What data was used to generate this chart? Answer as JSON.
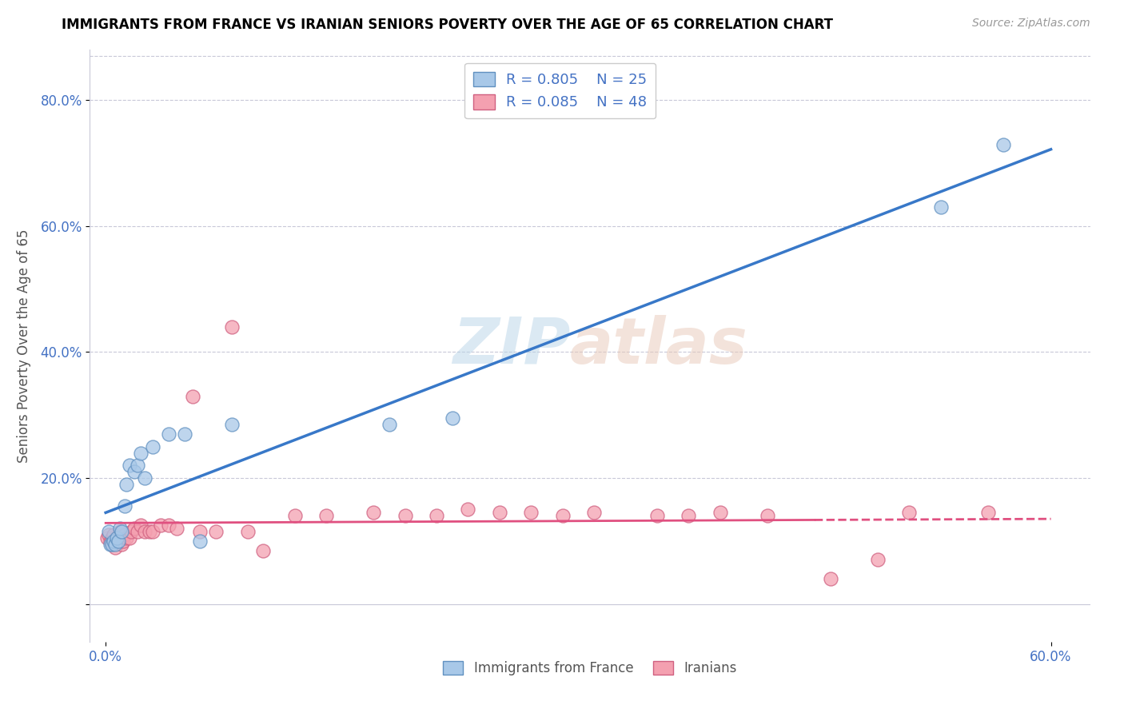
{
  "title": "IMMIGRANTS FROM FRANCE VS IRANIAN SENIORS POVERTY OVER THE AGE OF 65 CORRELATION CHART",
  "source": "Source: ZipAtlas.com",
  "ylabel": "Seniors Poverty Over the Age of 65",
  "xlim": [
    -0.01,
    0.625
  ],
  "ylim": [
    -0.06,
    0.88
  ],
  "yticks": [
    0.0,
    0.2,
    0.4,
    0.6,
    0.8
  ],
  "ytick_labels": [
    "",
    "20.0%",
    "40.0%",
    "60.0%",
    "80.0%"
  ],
  "xtick_vals": [
    0.0,
    0.6
  ],
  "xtick_labels": [
    "0.0%",
    "60.0%"
  ],
  "france_color": "#a8c8e8",
  "iran_color": "#f4a0b0",
  "france_edge_color": "#6090c0",
  "iran_edge_color": "#d06080",
  "france_line_color": "#3878c8",
  "iran_line_color": "#e05080",
  "tick_color": "#4472c4",
  "grid_color": "#c8c8d8",
  "france_R": 0.805,
  "france_N": 25,
  "iran_R": 0.085,
  "iran_N": 48,
  "watermark": "ZIPatlas",
  "france_x": [
    0.002,
    0.003,
    0.004,
    0.005,
    0.006,
    0.007,
    0.008,
    0.009,
    0.01,
    0.012,
    0.013,
    0.015,
    0.018,
    0.02,
    0.022,
    0.025,
    0.03,
    0.04,
    0.05,
    0.06,
    0.08,
    0.18,
    0.22,
    0.53,
    0.57
  ],
  "france_y": [
    0.115,
    0.095,
    0.095,
    0.1,
    0.095,
    0.105,
    0.1,
    0.12,
    0.115,
    0.155,
    0.19,
    0.22,
    0.21,
    0.22,
    0.24,
    0.2,
    0.25,
    0.27,
    0.27,
    0.1,
    0.285,
    0.285,
    0.295,
    0.63,
    0.73
  ],
  "iran_x": [
    0.001,
    0.002,
    0.003,
    0.004,
    0.005,
    0.006,
    0.007,
    0.008,
    0.009,
    0.01,
    0.011,
    0.012,
    0.013,
    0.015,
    0.016,
    0.018,
    0.02,
    0.022,
    0.025,
    0.028,
    0.03,
    0.035,
    0.04,
    0.045,
    0.055,
    0.06,
    0.07,
    0.08,
    0.09,
    0.1,
    0.12,
    0.14,
    0.17,
    0.19,
    0.21,
    0.23,
    0.25,
    0.27,
    0.29,
    0.31,
    0.35,
    0.37,
    0.39,
    0.42,
    0.46,
    0.49,
    0.51,
    0.56
  ],
  "iran_y": [
    0.105,
    0.11,
    0.1,
    0.105,
    0.11,
    0.09,
    0.105,
    0.1,
    0.115,
    0.095,
    0.1,
    0.11,
    0.105,
    0.105,
    0.115,
    0.12,
    0.115,
    0.125,
    0.115,
    0.115,
    0.115,
    0.125,
    0.125,
    0.12,
    0.33,
    0.115,
    0.115,
    0.44,
    0.115,
    0.085,
    0.14,
    0.14,
    0.145,
    0.14,
    0.14,
    0.15,
    0.145,
    0.145,
    0.14,
    0.145,
    0.14,
    0.14,
    0.145,
    0.14,
    0.04,
    0.07,
    0.145,
    0.145
  ]
}
